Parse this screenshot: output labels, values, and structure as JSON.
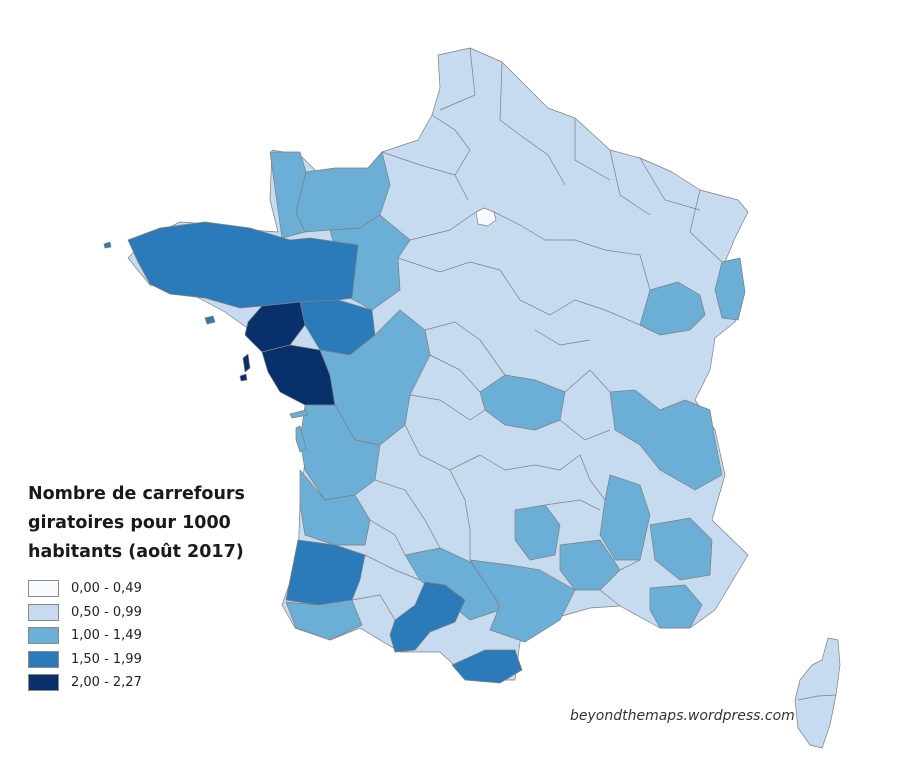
{
  "legend": {
    "title_lines": [
      "Nombre de carrefours",
      "giratoires pour 1000",
      "habitants (août 2017)"
    ],
    "classes": [
      {
        "label": "0,00 - 0,49",
        "color": "#f7fbff"
      },
      {
        "label": "0,50 - 0,99",
        "color": "#c6dbef"
      },
      {
        "label": "1,00 - 1,49",
        "color": "#6baed6"
      },
      {
        "label": "1,50 - 1,99",
        "color": "#2b7bba"
      },
      {
        "label": "2,00 - 2,27",
        "color": "#08306b"
      }
    ]
  },
  "credit": "beyondthemaps.wordpress.com",
  "colors": {
    "border": "#7f7f7f",
    "background": "#ffffff"
  }
}
